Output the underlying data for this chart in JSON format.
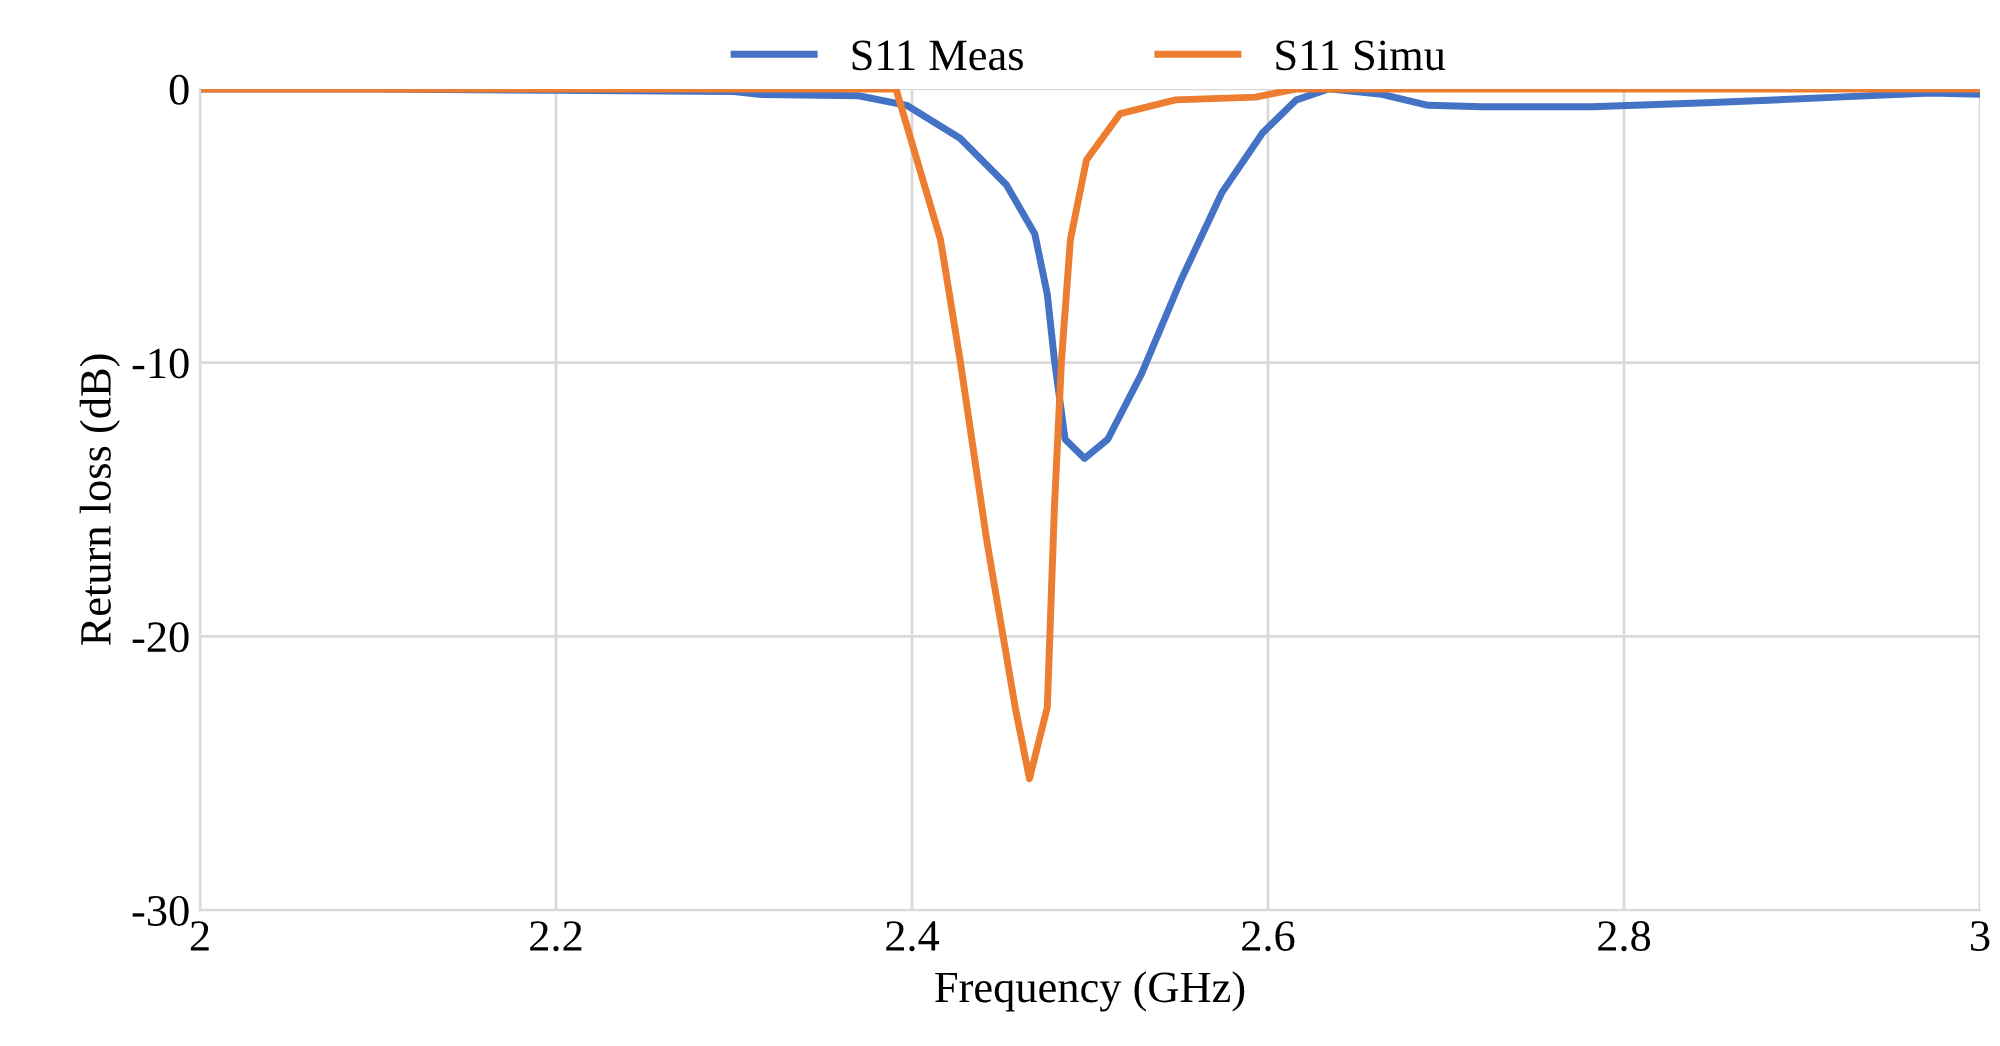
{
  "chart_data": {
    "type": "line",
    "xlabel": "Frequency (GHz)",
    "ylabel": "Return loss (dB)",
    "xlim": [
      2,
      3
    ],
    "xticks": [
      2,
      2.2,
      2.4,
      2.6,
      2.8,
      3
    ],
    "ylim": [
      -30,
      0
    ],
    "yticks": [
      -30,
      -20,
      -10,
      0
    ],
    "grid": true,
    "legend": "top",
    "marker": "none",
    "line_style": "solid",
    "series": [
      {
        "name": "S11 Meas",
        "color": "#4472c4",
        "x": [
          2.0,
          2.1,
          2.2,
          2.3,
          2.314,
          2.37,
          2.397,
          2.427,
          2.453,
          2.469,
          2.476,
          2.48,
          2.486,
          2.497,
          2.51,
          2.529,
          2.551,
          2.574,
          2.597,
          2.616,
          2.634,
          2.664,
          2.69,
          2.72,
          2.782,
          2.85,
          2.92,
          2.972,
          3.0
        ],
        "values": [
          0,
          0,
          -0.05,
          -0.1,
          -0.2,
          -0.25,
          -0.6,
          -1.8,
          -3.5,
          -5.3,
          -7.5,
          -9.9,
          -12.8,
          -13.5,
          -12.8,
          -10.4,
          -7.0,
          -3.8,
          -1.6,
          -0.4,
          0,
          -0.2,
          -0.6,
          -0.65,
          -0.65,
          -0.5,
          -0.3,
          -0.15,
          -0.2
        ]
      },
      {
        "name": "S11 Simu",
        "color": "#ed7d31",
        "x": [
          2.0,
          2.2,
          2.391,
          2.416,
          2.427,
          2.442,
          2.458,
          2.466,
          2.476,
          2.48,
          2.484,
          2.489,
          2.498,
          2.517,
          2.548,
          2.593,
          2.616,
          2.8,
          3.0
        ],
        "values": [
          0,
          0,
          0,
          -5.5,
          -9.9,
          -16.5,
          -22.6,
          -25.2,
          -22.6,
          -15.3,
          -9.9,
          -5.5,
          -2.6,
          -0.9,
          -0.4,
          -0.3,
          0,
          0,
          0
        ]
      }
    ]
  }
}
